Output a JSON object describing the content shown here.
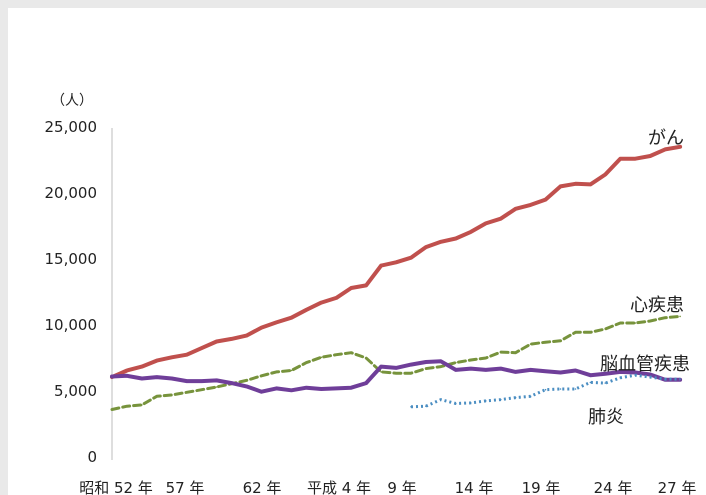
{
  "chart_data": {
    "type": "line",
    "unit_label": "（人）",
    "y_ticks": [
      "0",
      "5,000",
      "10,000",
      "15,000",
      "20,000",
      "25,000"
    ],
    "ylim": [
      0,
      25000
    ],
    "grid": false,
    "x_tick_labels": [
      "昭和 52 年",
      "57 年",
      "62 年",
      "平成 4 年",
      "9 年",
      "14 年",
      "19 年",
      "24 年",
      "27 年"
    ],
    "x": [
      "昭和52年",
      "昭和53年",
      "昭和54年",
      "昭和55年",
      "昭和56年",
      "昭和57年",
      "昭和58年",
      "昭和59年",
      "昭和60年",
      "昭和61年",
      "昭和62年",
      "昭和63年",
      "平成元年",
      "平成2年",
      "平成3年",
      "平成4年",
      "平成5年",
      "平成6年",
      "平成7年",
      "平成8年",
      "平成9年",
      "平成10年",
      "平成11年",
      "平成12年",
      "平成13年",
      "平成14年",
      "平成15年",
      "平成16年",
      "平成17年",
      "平成18年",
      "平成19年",
      "平成20年",
      "平成21年",
      "平成22年",
      "平成23年",
      "平成24年",
      "平成25年",
      "平成26年",
      "平成27年"
    ],
    "series": [
      {
        "name": "がん",
        "color": "#c0504d",
        "style": "solid",
        "values": [
          6050,
          6550,
          6850,
          7300,
          7550,
          7750,
          8250,
          8750,
          8950,
          9200,
          9800,
          10200,
          10550,
          11150,
          11700,
          12050,
          12800,
          13000,
          14500,
          14750,
          15100,
          15900,
          16300,
          16550,
          17050,
          17700,
          18050,
          18800,
          19100,
          19500,
          20500,
          20700,
          20650,
          21400,
          22600,
          22600,
          22800,
          23300,
          23500
        ]
      },
      {
        "name": "心疾患",
        "color": "#77933c",
        "style": "dashed",
        "values": [
          3600,
          3850,
          3950,
          4600,
          4700,
          4900,
          5100,
          5300,
          5550,
          5800,
          6150,
          6450,
          6550,
          7150,
          7550,
          7750,
          7900,
          7500,
          6450,
          6350,
          6350,
          6700,
          6850,
          7150,
          7350,
          7500,
          7950,
          7900,
          8550,
          8700,
          8800,
          9450,
          9450,
          9700,
          10150,
          10150,
          10300,
          10550,
          10650
        ]
      },
      {
        "name": "脳血管疾患",
        "color": "#6f3e99",
        "style": "solid",
        "values": [
          6100,
          6150,
          5950,
          6050,
          5950,
          5750,
          5750,
          5800,
          5600,
          5350,
          4950,
          5200,
          5050,
          5250,
          5150,
          5200,
          5250,
          5600,
          6850,
          6750,
          7000,
          7200,
          7250,
          6600,
          6700,
          6600,
          6700,
          6450,
          6600,
          6500,
          6400,
          6550,
          6200,
          6300,
          6450,
          6400,
          6250,
          5850,
          5850
        ]
      },
      {
        "name": "肺炎",
        "color": "#4b8ec2",
        "style": "dotted",
        "values": [
          null,
          null,
          null,
          null,
          null,
          null,
          null,
          null,
          null,
          null,
          null,
          null,
          null,
          null,
          null,
          null,
          null,
          null,
          null,
          null,
          3800,
          3850,
          4350,
          4050,
          4100,
          4250,
          4350,
          4500,
          4600,
          5100,
          5150,
          5150,
          5650,
          5600,
          6000,
          6200,
          6050,
          5900,
          5900
        ]
      }
    ]
  }
}
